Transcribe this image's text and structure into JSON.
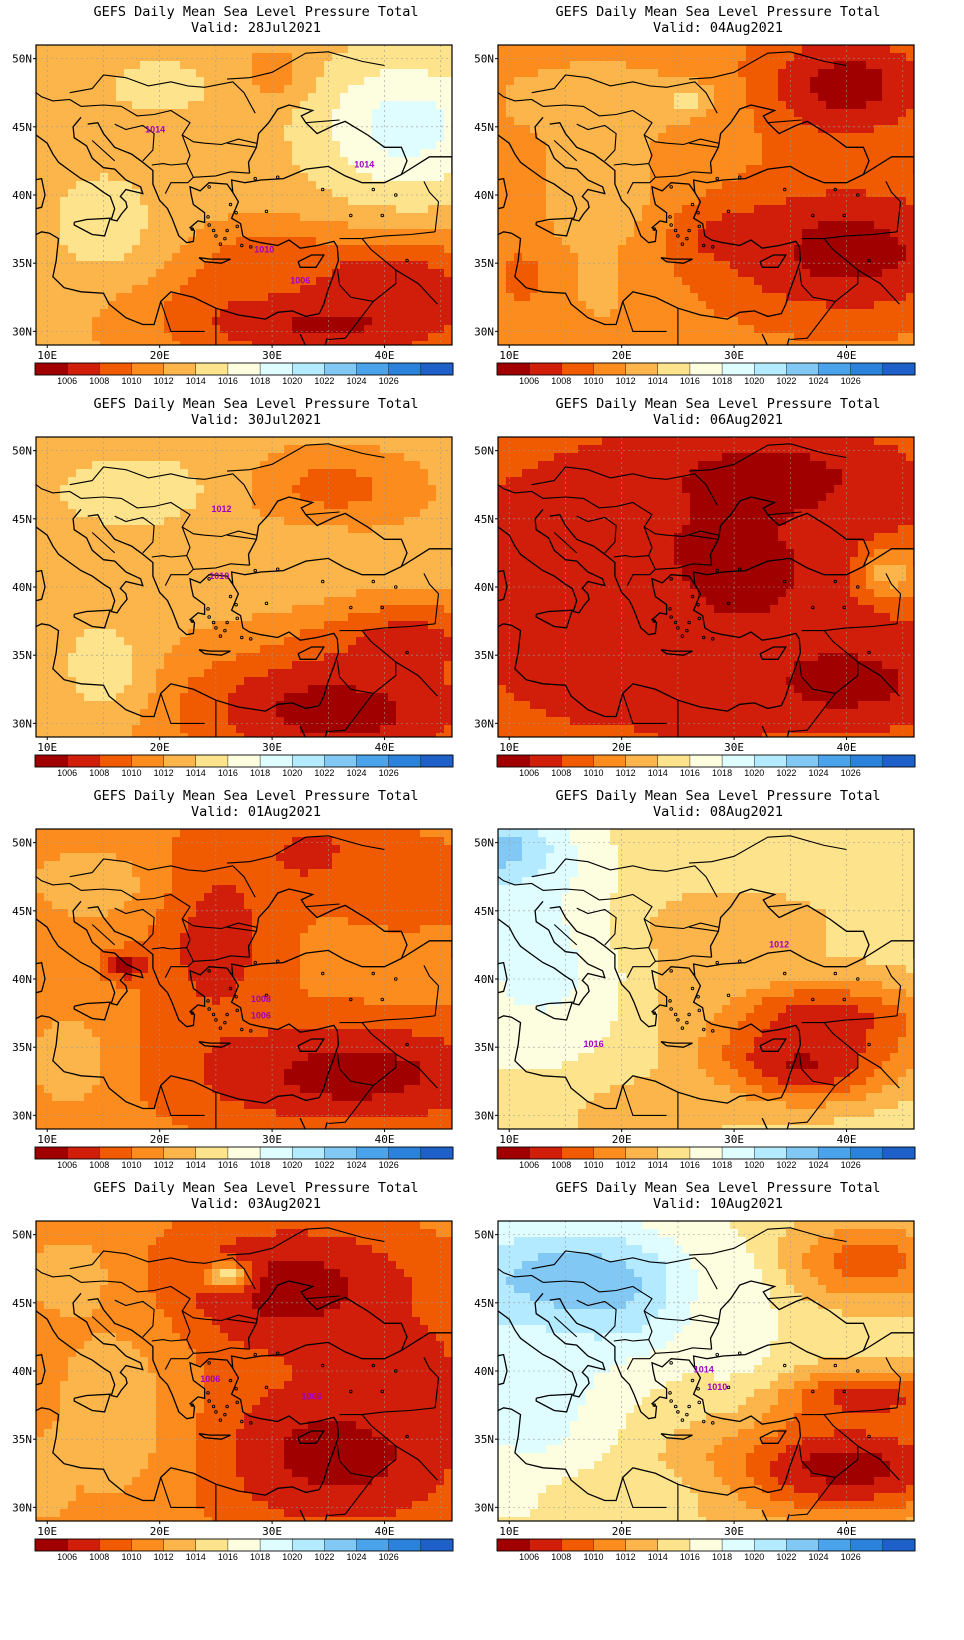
{
  "figure": {
    "title": "GEFS Daily Mean Sea Level Pressure Total",
    "valid_prefix": "Valid: "
  },
  "map": {
    "lat_ticks": [
      "30N",
      "35N",
      "40N",
      "45N",
      "50N"
    ],
    "lon_ticks": [
      "10E",
      "20E",
      "30E",
      "40E"
    ],
    "lat_range": [
      29,
      51
    ],
    "lon_range": [
      9,
      46
    ]
  },
  "colorbar": {
    "levels": [
      "1006",
      "1008",
      "1010",
      "1012",
      "1014",
      "1016",
      "1018",
      "1020",
      "1022",
      "1024",
      "1026"
    ],
    "colors": [
      "#a00000",
      "#d01e0a",
      "#f05a00",
      "#fc8c1e",
      "#fbb54b",
      "#fde38c",
      "#fdfde0",
      "#dffcff",
      "#b4eaff",
      "#82c8f5",
      "#4ba3ec",
      "#2a82dc",
      "#1e60c8"
    ]
  },
  "panels": [
    {
      "valid": "28Jul2021",
      "fields": {
        "base": 4,
        "blobs": [
          [
            35,
            31,
            15,
            4,
            0
          ],
          [
            40,
            34,
            10,
            3,
            1
          ],
          [
            29,
            35,
            6,
            3,
            2
          ],
          [
            42,
            45,
            8,
            5,
            7
          ],
          [
            30,
            49,
            3,
            2,
            3
          ],
          [
            20,
            48,
            5,
            2,
            5
          ],
          [
            15,
            38,
            5,
            4,
            5
          ]
        ]
      },
      "contour_labels": [
        {
          "text": "1014",
          "lon": 19.6,
          "lat": 44.6
        },
        {
          "text": "1014",
          "lon": 38.2,
          "lat": 42.0
        },
        {
          "text": "1010",
          "lon": 29.3,
          "lat": 35.8
        },
        {
          "text": "1006",
          "lon": 32.5,
          "lat": 33.5
        }
      ]
    },
    {
      "valid": "04Aug2021",
      "fields": {
        "base": 3,
        "blobs": [
          [
            40,
            36,
            12,
            5,
            0
          ],
          [
            40,
            48,
            8,
            4,
            0
          ],
          [
            29,
            37,
            5,
            2,
            1
          ],
          [
            18,
            40,
            6,
            6,
            4
          ],
          [
            18,
            47,
            10,
            3,
            4
          ],
          [
            26,
            47,
            2,
            1,
            5
          ],
          [
            11,
            34,
            2,
            2,
            2
          ],
          [
            18,
            33,
            2,
            2,
            4
          ]
        ]
      },
      "contour_labels": []
    },
    {
      "valid": "30Jul2021",
      "fields": {
        "base": 4,
        "blobs": [
          [
            36,
            31,
            15,
            5,
            0
          ],
          [
            42,
            36,
            8,
            3,
            1
          ],
          [
            35,
            47,
            8,
            3,
            2
          ],
          [
            18,
            47,
            8,
            3,
            5
          ],
          [
            15,
            34,
            4,
            4,
            5
          ],
          [
            32,
            42,
            8,
            3,
            4
          ]
        ]
      },
      "contour_labels": [
        {
          "text": "1012",
          "lon": 25.5,
          "lat": 45.5
        },
        {
          "text": "1010",
          "lon": 25.3,
          "lat": 40.6
        }
      ]
    },
    {
      "valid": "06Aug2021",
      "fields": {
        "base": 2,
        "blobs": [
          [
            26,
            41,
            18,
            8,
            0
          ],
          [
            40,
            33,
            8,
            3,
            0
          ],
          [
            33,
            48,
            10,
            3,
            0
          ],
          [
            18,
            38,
            10,
            8,
            1
          ],
          [
            44,
            41,
            3,
            2,
            4
          ],
          [
            28,
            30,
            4,
            2,
            1
          ]
        ]
      },
      "contour_labels": []
    },
    {
      "valid": "01Aug2021",
      "fields": {
        "base": 3,
        "blobs": [
          [
            37,
            33,
            15,
            4,
            0
          ],
          [
            25,
            43,
            6,
            8,
            1
          ],
          [
            34,
            49,
            6,
            3,
            1
          ],
          [
            14,
            47,
            6,
            3,
            4
          ],
          [
            12,
            34,
            4,
            4,
            4
          ],
          [
            42,
            47,
            8,
            4,
            2
          ],
          [
            17,
            41,
            2,
            1,
            0
          ]
        ]
      },
      "contour_labels": [
        {
          "text": "1008",
          "lon": 29.0,
          "lat": 38.3
        },
        {
          "text": "1006",
          "lon": 29.0,
          "lat": 37.1
        }
      ]
    },
    {
      "valid": "08Aug2021",
      "fields": {
        "base": 5,
        "blobs": [
          [
            10,
            49,
            5,
            3,
            10
          ],
          [
            13,
            42,
            8,
            8,
            7
          ],
          [
            36,
            34,
            8,
            3,
            0
          ],
          [
            38,
            37,
            10,
            3,
            1
          ],
          [
            30,
            44,
            10,
            3,
            4
          ],
          [
            22,
            30,
            8,
            3,
            4
          ],
          [
            26,
            40,
            4,
            4,
            4
          ]
        ]
      },
      "contour_labels": [
        {
          "text": "1012",
          "lon": 34.0,
          "lat": 42.3
        },
        {
          "text": "1016",
          "lon": 17.5,
          "lat": 35.0
        }
      ]
    },
    {
      "valid": "03Aug2021",
      "fields": {
        "base": 3,
        "blobs": [
          [
            36,
            34,
            12,
            6,
            0
          ],
          [
            32,
            46,
            12,
            5,
            0
          ],
          [
            42,
            40,
            6,
            4,
            1
          ],
          [
            16,
            37,
            6,
            8,
            4
          ],
          [
            12,
            47,
            4,
            3,
            4
          ],
          [
            26,
            47,
            2,
            1,
            5
          ],
          [
            10,
            32,
            2,
            3,
            4
          ]
        ]
      },
      "contour_labels": [
        {
          "text": "1006",
          "lon": 24.5,
          "lat": 39.2
        },
        {
          "text": "1006",
          "lon": 33.5,
          "lat": 37.9
        }
      ]
    },
    {
      "valid": "10Aug2021",
      "fields": {
        "base": 5,
        "blobs": [
          [
            15,
            46,
            12,
            5,
            10
          ],
          [
            12,
            38,
            8,
            8,
            7
          ],
          [
            40,
            33,
            12,
            4,
            0
          ],
          [
            42,
            38,
            8,
            2,
            1
          ],
          [
            42,
            48,
            8,
            3,
            2
          ],
          [
            30,
            44,
            4,
            6,
            6
          ],
          [
            20,
            31,
            8,
            2,
            5
          ]
        ]
      },
      "contour_labels": [
        {
          "text": "1014",
          "lon": 27.3,
          "lat": 39.9
        },
        {
          "text": "1010",
          "lon": 28.5,
          "lat": 38.6
        }
      ]
    }
  ]
}
